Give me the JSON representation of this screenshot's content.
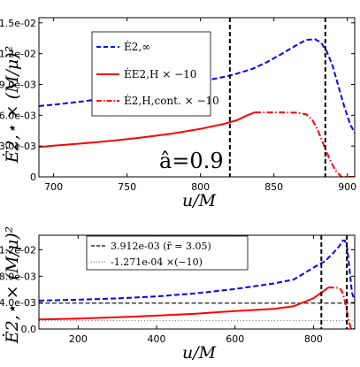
{
  "figure": {
    "ylabel": "Ė2,⋆ × (M/μ)²",
    "xlabel": "u/M"
  },
  "chart_data": [
    {
      "type": "line",
      "xlabel": "u/M",
      "ylabel": "Ė2,⋆ × (M/μ)²",
      "xlim": [
        690,
        905
      ],
      "ylim": [
        0,
        0.0155
      ],
      "xticks": [
        "700",
        "750",
        "800",
        "850",
        "900"
      ],
      "yticks": [
        "0",
        "3.0e-03",
        "6.0e-03",
        "9.0e-03",
        "1.2e-02",
        "1.5e-02"
      ],
      "annotation": "â=0.9",
      "vlines": [
        820,
        885
      ],
      "legend_position": "upper-left",
      "series": [
        {
          "name": "Ė2,∞",
          "color": "#0000ff",
          "dash": "dashed",
          "points": [
            [
              690,
              0.0069
            ],
            [
              700,
              0.00703
            ],
            [
              720,
              0.00735
            ],
            [
              740,
              0.00775
            ],
            [
              760,
              0.00825
            ],
            [
              780,
              0.00878
            ],
            [
              800,
              0.00928
            ],
            [
              820,
              0.00985
            ],
            [
              835,
              0.0105
            ],
            [
              845,
              0.01115
            ],
            [
              855,
              0.01195
            ],
            [
              865,
              0.0128
            ],
            [
              872,
              0.01335
            ],
            [
              878,
              0.0134
            ],
            [
              882,
              0.0131
            ],
            [
              886,
              0.0122
            ],
            [
              890,
              0.0108
            ],
            [
              894,
              0.0088
            ],
            [
              898,
              0.0068
            ],
            [
              902,
              0.0051
            ],
            [
              905,
              0.0043
            ]
          ]
        },
        {
          "name": "ĖE2,H × −10",
          "color": "#ff0000",
          "dash": "solid",
          "points": [
            [
              690,
              0.0029
            ],
            [
              700,
              0.00303
            ],
            [
              720,
              0.00326
            ],
            [
              740,
              0.00352
            ],
            [
              760,
              0.00383
            ],
            [
              780,
              0.0042
            ],
            [
              800,
              0.00468
            ],
            [
              815,
              0.00512
            ],
            [
              825,
              0.00553
            ],
            [
              832,
              0.006
            ],
            [
              837,
              0.00628
            ]
          ]
        },
        {
          "name": "Ė2,H,cont. × −10",
          "color": "#ff0000",
          "dash": "dashdot",
          "points": [
            [
              837,
              0.00628
            ],
            [
              845,
              0.00628
            ],
            [
              855,
              0.00628
            ],
            [
              865,
              0.00625
            ],
            [
              872,
              0.0061
            ],
            [
              876,
              0.0056
            ],
            [
              880,
              0.0045
            ],
            [
              884,
              0.0031
            ],
            [
              888,
              0.0017
            ],
            [
              892,
              0.0006
            ],
            [
              896,
              0.0
            ],
            [
              905,
              0.0
            ]
          ]
        }
      ]
    },
    {
      "type": "line",
      "xlabel": "u/M",
      "ylabel": "Ė2,⋆ × (M/μ)²",
      "xlim": [
        100,
        905
      ],
      "ylim": [
        0,
        0.0142
      ],
      "xticks": [
        "200",
        "400",
        "600",
        "800"
      ],
      "yticks": [
        "0.0",
        "4.0e-03",
        "8.0e-03",
        "1.2e-02"
      ],
      "vlines": [
        820,
        885
      ],
      "legend_position": "upper-left",
      "hlines": [
        {
          "name": "3.912e-03 (r̂ = 3.05)",
          "value": 0.003912,
          "color": "#000000",
          "dash": "dashed"
        },
        {
          "name": "-1.271e-04 ×(−10)",
          "value": 0.001271,
          "color": "#777777",
          "dash": "dotted"
        }
      ],
      "series": [
        {
          "name": "Ė2,∞",
          "color": "#0000ff",
          "dash": "dashed",
          "points": [
            [
              100,
              0.0043
            ],
            [
              200,
              0.00443
            ],
            [
              300,
              0.00463
            ],
            [
              400,
              0.00493
            ],
            [
              500,
              0.0054
            ],
            [
              600,
              0.00605
            ],
            [
              700,
              0.0069
            ],
            [
              750,
              0.0075
            ],
            [
              800,
              0.0093
            ],
            [
              830,
              0.0103
            ],
            [
              850,
              0.0115
            ],
            [
              865,
              0.0125
            ],
            [
              875,
              0.0134
            ],
            [
              880,
              0.0134
            ],
            [
              886,
              0.0122
            ],
            [
              892,
              0.009
            ],
            [
              898,
              0.0055
            ],
            [
              905,
              0.0043
            ]
          ]
        },
        {
          "name": "ĖE2,H × −10",
          "color": "#ff0000",
          "dash": "solid",
          "points": [
            [
              100,
              0.00143
            ],
            [
              200,
              0.00158
            ],
            [
              300,
              0.00178
            ],
            [
              400,
              0.00202
            ],
            [
              500,
              0.00232
            ],
            [
              600,
              0.00272
            ],
            [
              700,
              0.00306
            ],
            [
              750,
              0.00345
            ],
            [
              800,
              0.00465
            ],
            [
              820,
              0.0055
            ],
            [
              832,
              0.006
            ],
            [
              837,
              0.00628
            ]
          ]
        },
        {
          "name": "Ė2,H,cont. × −10",
          "color": "#ff0000",
          "dash": "dashdot",
          "points": [
            [
              837,
              0.00628
            ],
            [
              850,
              0.00628
            ],
            [
              865,
              0.0062
            ],
            [
              872,
              0.0058
            ],
            [
              878,
              0.0047
            ],
            [
              884,
              0.0031
            ],
            [
              890,
              0.0012
            ],
            [
              896,
              0.0
            ],
            [
              905,
              0.0
            ]
          ]
        }
      ]
    }
  ]
}
